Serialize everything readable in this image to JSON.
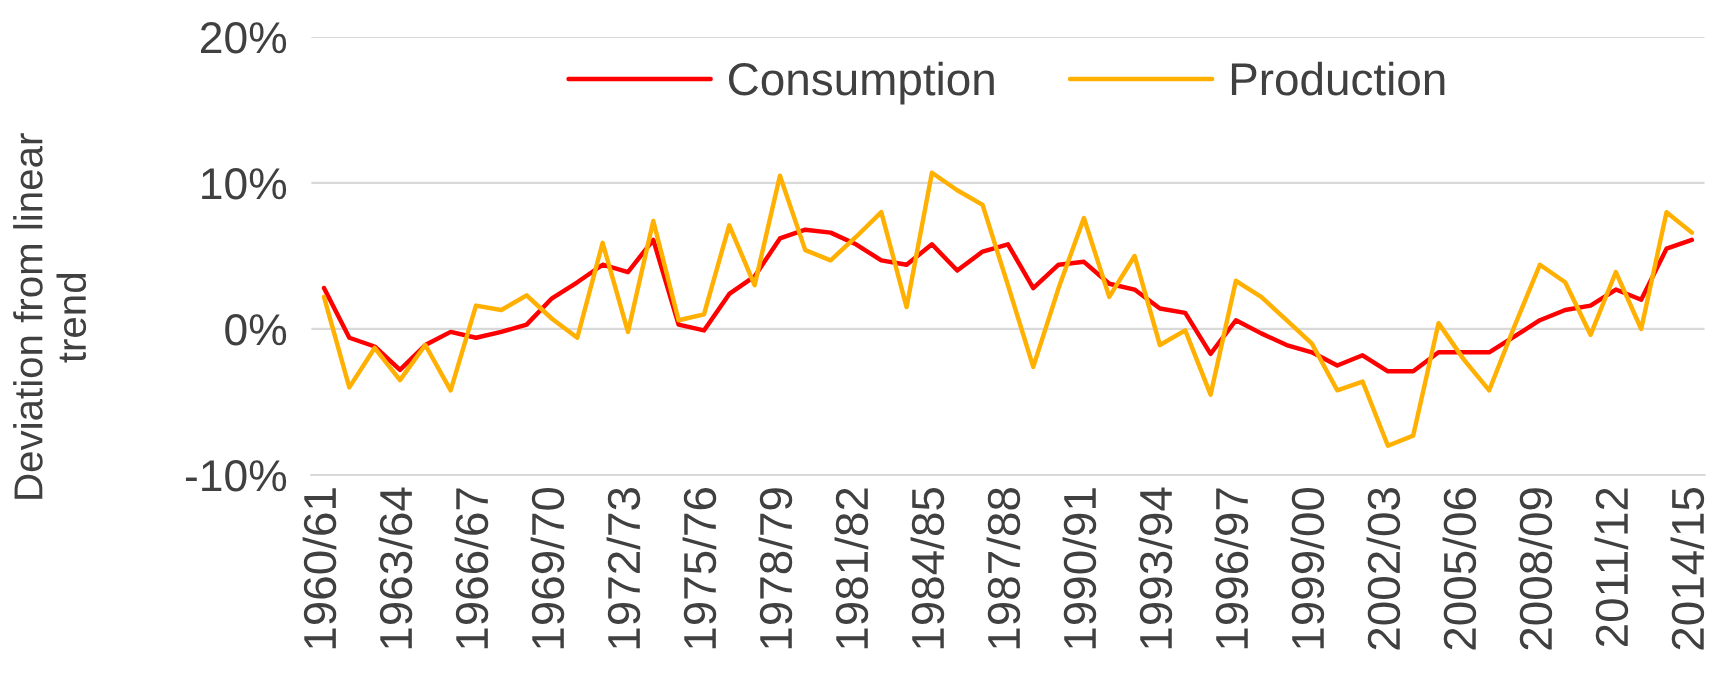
{
  "chart_data": {
    "type": "line",
    "ylabel": "Deviation from linear\ntrend",
    "categories": [
      "1960/61",
      null,
      null,
      "1963/64",
      null,
      null,
      "1966/67",
      null,
      null,
      "1969/70",
      null,
      null,
      "1972/73",
      null,
      null,
      "1975/76",
      null,
      null,
      "1978/79",
      null,
      null,
      "1981/82",
      null,
      null,
      "1984/85",
      null,
      null,
      "1987/88",
      null,
      null,
      "1990/91",
      null,
      null,
      "1993/94",
      null,
      null,
      "1996/97",
      null,
      null,
      "1999/00",
      null,
      null,
      "2002/03",
      null,
      null,
      "2005/06",
      null,
      null,
      "2008/09",
      null,
      null,
      "2011/12",
      null,
      null,
      "2014/15"
    ],
    "series": [
      {
        "name": "Consumption",
        "color": "#ff0000",
        "values": [
          2.8,
          -0.6,
          -1.2,
          -2.8,
          -1.1,
          -0.2,
          -0.6,
          -0.2,
          0.3,
          2.1,
          3.2,
          4.4,
          3.9,
          6.1,
          0.3,
          -0.1,
          2.4,
          3.6,
          6.2,
          6.8,
          6.6,
          5.8,
          4.7,
          4.4,
          5.8,
          4.0,
          5.3,
          5.8,
          2.8,
          4.4,
          4.6,
          3.1,
          2.7,
          1.4,
          1.1,
          -1.7,
          0.6,
          -0.3,
          -1.1,
          -1.6,
          -2.5,
          -1.8,
          -2.9,
          -2.9,
          -1.6,
          -1.6,
          -1.6,
          -0.5,
          0.6,
          1.3,
          1.6,
          2.7,
          2.0,
          5.5,
          6.1
        ]
      },
      {
        "name": "Production",
        "color": "#ffb000",
        "values": [
          2.2,
          -4.0,
          -1.3,
          -3.5,
          -1.1,
          -4.2,
          1.6,
          1.3,
          2.3,
          0.7,
          -0.6,
          5.9,
          -0.2,
          7.4,
          0.6,
          1.0,
          7.1,
          3.0,
          10.5,
          5.4,
          4.7,
          6.3,
          8.0,
          1.5,
          10.7,
          9.5,
          8.5,
          3.0,
          -2.6,
          2.8,
          7.6,
          2.2,
          5.0,
          -1.1,
          -0.1,
          -4.5,
          3.3,
          2.2,
          0.6,
          -1.0,
          -4.2,
          -3.6,
          -8.0,
          -7.3,
          0.4,
          -2.1,
          -4.2,
          0.2,
          4.4,
          3.2,
          -0.4,
          3.9,
          0.0,
          8.0,
          6.6
        ]
      }
    ],
    "ylim": [
      -10,
      20
    ],
    "yticks": [
      {
        "value": -10,
        "label": "-10%"
      },
      {
        "value": 0,
        "label": "0%"
      },
      {
        "value": 10,
        "label": "10%"
      },
      {
        "value": 20,
        "label": "20%"
      }
    ],
    "grid": "y",
    "legend": "top"
  }
}
